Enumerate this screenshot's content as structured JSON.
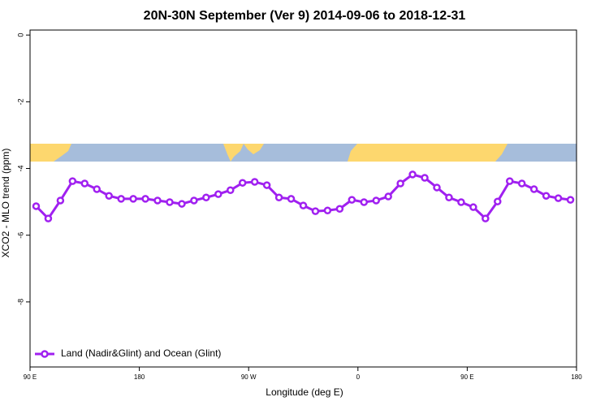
{
  "chart_data": {
    "type": "line",
    "title": "20N-30N September (Ver 9)   2014-09-06 to 2018-12-31",
    "x_label": "Longitude (deg E)",
    "y_label": "XCO2 - MLO trend (ppm)",
    "xlim": [
      90,
      540
    ],
    "ylim": [
      -9.95,
      0.15
    ],
    "xticks": [
      {
        "value": 90,
        "label": "90 E"
      },
      180,
      {
        "value": 270,
        "label": "90 W"
      },
      {
        "value": 360,
        "label": "0"
      },
      {
        "value": 450,
        "label": "90 E"
      },
      {
        "value": 540,
        "label": "180"
      }
    ],
    "yticks": [
      0,
      -2,
      -4,
      -6,
      -8
    ],
    "x": [
      95,
      105,
      115,
      125,
      135,
      145,
      155,
      165,
      175,
      185,
      195,
      205,
      215,
      225,
      235,
      245,
      255,
      265,
      275,
      285,
      295,
      305,
      315,
      325,
      335,
      345,
      355,
      365,
      375,
      385,
      395,
      405,
      415,
      425,
      435,
      445,
      455,
      465,
      475,
      485,
      495,
      505,
      515,
      525,
      535
    ],
    "legend": "bottom-left",
    "series": [
      {
        "name": "Land (Nadir&Glint) and Ocean (Glint)",
        "color": "#a020f0",
        "values": [
          -5.13,
          -5.5,
          -4.96,
          -4.38,
          -4.45,
          -4.62,
          -4.82,
          -4.91,
          -4.91,
          -4.91,
          -4.96,
          -5.01,
          -5.06,
          -4.96,
          -4.87,
          -4.77,
          -4.65,
          -4.43,
          -4.4,
          -4.5,
          -4.87,
          -4.91,
          -5.11,
          -5.28,
          -5.26,
          -5.21,
          -4.94,
          -5.01,
          -4.96,
          -4.84,
          -4.45,
          -4.18,
          -4.28,
          -4.57,
          -4.87,
          -5.01,
          -5.16,
          -5.5,
          -4.99,
          -4.38,
          -4.45,
          -4.62,
          -4.82,
          -4.89,
          -4.94
        ]
      }
    ]
  }
}
